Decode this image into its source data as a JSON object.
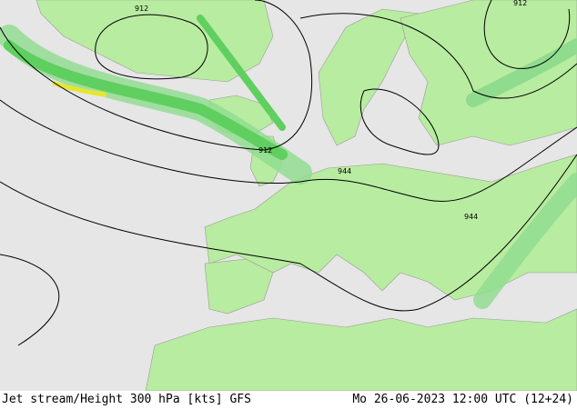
{
  "footer": {
    "left": "Jet stream/Height 300 hPa [kts] GFS",
    "right": "Mo 26-06-2023 12:00 UTC (12+24)"
  },
  "contour_labels": [
    "912",
    "912",
    "912",
    "944",
    "944"
  ]
}
